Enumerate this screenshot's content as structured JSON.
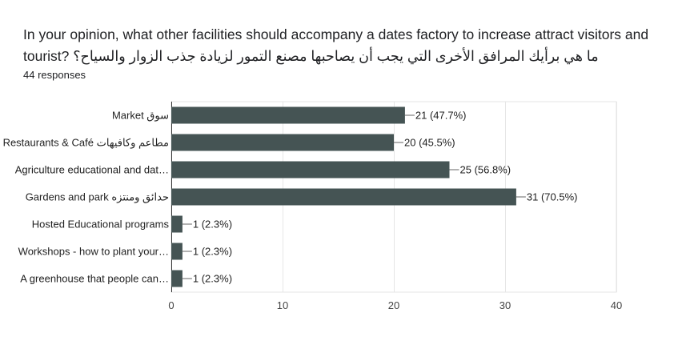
{
  "question": "In your opinion, what other facilities should accompany a dates factory to increase attract visitors and tourist? ما هي برأيك المرافق الأخرى التي يجب أن يصاحبها مصنع التمور لزيادة جذب الزوار والسياح؟",
  "responses": "44 responses",
  "chart_data": {
    "type": "bar",
    "orientation": "horizontal",
    "categories": [
      "Market سوق",
      "Restaurants & Café مطاعم وكافيهات",
      "Agriculture educational and dat…",
      "Gardens and park حدائق ومنتزه",
      "Hosted Educational programs",
      "Workshops - how to plant your…",
      "A greenhouse that people can…"
    ],
    "values": [
      21,
      20,
      25,
      31,
      1,
      1,
      1
    ],
    "data_labels": [
      "21 (47.7%)",
      "20 (45.5%)",
      "25 (56.8%)",
      "31 (70.5%)",
      "1 (2.3%)",
      "1 (2.3%)",
      "1 (2.3%)"
    ],
    "xlim": [
      0,
      40
    ],
    "xticks": [
      "0",
      "10",
      "20",
      "30",
      "40"
    ],
    "grid": true,
    "bar_color": "#455454"
  }
}
